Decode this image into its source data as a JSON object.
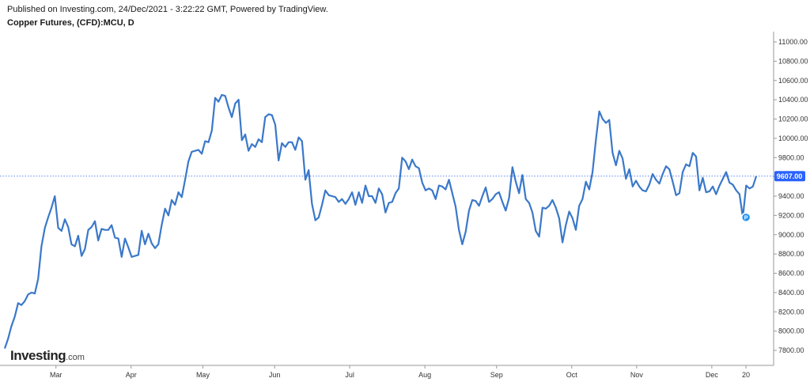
{
  "header": {
    "published": "Published on Investing.com, 24/Dec/2021 - 3:22:22 GMT, Powered by TradingView.",
    "symbol": "Copper Futures, (CFD):MCU, D"
  },
  "logo": {
    "brand": "Investing",
    "suffix": ".com"
  },
  "colors": {
    "line": "#3a78c9",
    "current_marker": "#2962ff",
    "grid": "#e6e6e6",
    "axis": "#999999",
    "label_bg": "#2962ff"
  },
  "chart_data": {
    "type": "line",
    "title": "Copper Futures, (CFD):MCU, D",
    "ylim": [
      7800,
      11000
    ],
    "y_ticks": [
      7800,
      8000,
      8200,
      8400,
      8600,
      8800,
      9000,
      9200,
      9400,
      9600,
      9800,
      10000,
      10200,
      10400,
      10600,
      10800,
      11000
    ],
    "y_tick_labels": [
      "7800.00",
      "8000.00",
      "8200.00",
      "8400.00",
      "8600.00",
      "8800.00",
      "9000.00",
      "9200.00",
      "9400.00",
      "9600.00",
      "9800.00",
      "10000.00",
      "10200.00",
      "10400.00",
      "10600.00",
      "10800.00",
      "11000.00"
    ],
    "x_ticks": [
      "Mar",
      "Apr",
      "May",
      "Jun",
      "Jul",
      "Aug",
      "Sep",
      "Oct",
      "Nov",
      "Dec",
      "20"
    ],
    "x_tick_positions": [
      15,
      37,
      58,
      79,
      101,
      123,
      144,
      166,
      185,
      207,
      217
    ],
    "current_value": 9607,
    "current_label": "9607.00",
    "grid": false,
    "series": [
      {
        "values": [
          7820,
          7920,
          8050,
          8150,
          8290,
          8270,
          8310,
          8380,
          8400,
          8390,
          8540,
          8880,
          9070,
          9180,
          9280,
          9400,
          9070,
          9040,
          9160,
          9080,
          8900,
          8880,
          8990,
          8780,
          8850,
          9050,
          9080,
          9140,
          8940,
          9060,
          9050,
          9050,
          9100,
          8970,
          8960,
          8770,
          8960,
          8870,
          8770,
          8780,
          8790,
          9040,
          8900,
          9010,
          8910,
          8860,
          8900,
          9100,
          9270,
          9200,
          9360,
          9310,
          9440,
          9390,
          9570,
          9760,
          9860,
          9870,
          9880,
          9840,
          9970,
          9960,
          10080,
          10420,
          10380,
          10450,
          10440,
          10320,
          10220,
          10360,
          10400,
          9980,
          10040,
          9870,
          9940,
          9910,
          9990,
          9960,
          10220,
          10250,
          10240,
          10140,
          9770,
          9950,
          9910,
          9960,
          9960,
          9880,
          10010,
          9970,
          9570,
          9670,
          9320,
          9150,
          9180,
          9310,
          9460,
          9410,
          9400,
          9390,
          9340,
          9370,
          9320,
          9370,
          9440,
          9310,
          9440,
          9330,
          9510,
          9400,
          9400,
          9330,
          9480,
          9420,
          9230,
          9330,
          9340,
          9430,
          9480,
          9800,
          9760,
          9680,
          9780,
          9710,
          9690,
          9540,
          9460,
          9480,
          9460,
          9370,
          9510,
          9500,
          9470,
          9570,
          9430,
          9290,
          9050,
          8900,
          9030,
          9250,
          9360,
          9350,
          9300,
          9400,
          9490,
          9340,
          9370,
          9420,
          9440,
          9340,
          9250,
          9380,
          9700,
          9550,
          9430,
          9620,
          9370,
          9330,
          9230,
          9040,
          8980,
          9280,
          9270,
          9300,
          9360,
          9280,
          9170,
          8920,
          9100,
          9240,
          9170,
          9050,
          9300,
          9370,
          9550,
          9470,
          9650,
          9980,
          10280,
          10200,
          10160,
          10190,
          9850,
          9720,
          9870,
          9790,
          9580,
          9680,
          9500,
          9560,
          9500,
          9460,
          9450,
          9520,
          9630,
          9570,
          9530,
          9630,
          9710,
          9680,
          9550,
          9410,
          9430,
          9650,
          9730,
          9710,
          9850,
          9810,
          9460,
          9590,
          9440,
          9450,
          9500,
          9420,
          9510,
          9580,
          9650,
          9540,
          9520,
          9460,
          9420,
          9180,
          9510,
          9480,
          9500,
          9607
        ]
      }
    ]
  }
}
